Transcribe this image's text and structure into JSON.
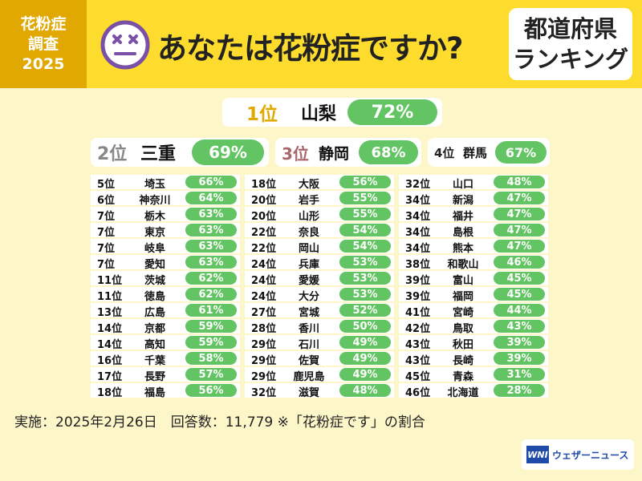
{
  "header": {
    "survey_tag": [
      "花粉症",
      "調査",
      "2025"
    ],
    "title": "あなたは花粉症ですか?",
    "ranking_label": [
      "都道府県",
      "ランキング"
    ]
  },
  "top": [
    {
      "rank": "1位",
      "pref": "山梨",
      "pct": "72%"
    },
    {
      "rank": "2位",
      "pref": "三重",
      "pct": "69%"
    },
    {
      "rank": "3位",
      "pref": "静岡",
      "pct": "68%"
    },
    {
      "rank": "4位",
      "pref": "群馬",
      "pct": "67%"
    }
  ],
  "columns": [
    [
      {
        "rank": "5位",
        "pref": "埼玉",
        "pct": "66%"
      },
      {
        "rank": "6位",
        "pref": "神奈川",
        "pct": "64%"
      },
      {
        "rank": "7位",
        "pref": "栃木",
        "pct": "63%"
      },
      {
        "rank": "7位",
        "pref": "東京",
        "pct": "63%"
      },
      {
        "rank": "7位",
        "pref": "岐阜",
        "pct": "63%"
      },
      {
        "rank": "7位",
        "pref": "愛知",
        "pct": "63%"
      },
      {
        "rank": "11位",
        "pref": "茨城",
        "pct": "62%"
      },
      {
        "rank": "11位",
        "pref": "徳島",
        "pct": "62%"
      },
      {
        "rank": "13位",
        "pref": "広島",
        "pct": "61%"
      },
      {
        "rank": "14位",
        "pref": "京都",
        "pct": "59%"
      },
      {
        "rank": "14位",
        "pref": "高知",
        "pct": "59%"
      },
      {
        "rank": "16位",
        "pref": "千葉",
        "pct": "58%"
      },
      {
        "rank": "17位",
        "pref": "長野",
        "pct": "57%"
      },
      {
        "rank": "18位",
        "pref": "福島",
        "pct": "56%"
      }
    ],
    [
      {
        "rank": "18位",
        "pref": "大阪",
        "pct": "56%"
      },
      {
        "rank": "20位",
        "pref": "岩手",
        "pct": "55%"
      },
      {
        "rank": "20位",
        "pref": "山形",
        "pct": "55%"
      },
      {
        "rank": "22位",
        "pref": "奈良",
        "pct": "54%"
      },
      {
        "rank": "22位",
        "pref": "岡山",
        "pct": "54%"
      },
      {
        "rank": "24位",
        "pref": "兵庫",
        "pct": "53%"
      },
      {
        "rank": "24位",
        "pref": "愛媛",
        "pct": "53%"
      },
      {
        "rank": "24位",
        "pref": "大分",
        "pct": "53%"
      },
      {
        "rank": "27位",
        "pref": "宮城",
        "pct": "52%"
      },
      {
        "rank": "28位",
        "pref": "香川",
        "pct": "50%"
      },
      {
        "rank": "29位",
        "pref": "石川",
        "pct": "49%"
      },
      {
        "rank": "29位",
        "pref": "佐賀",
        "pct": "49%"
      },
      {
        "rank": "29位",
        "pref": "鹿児島",
        "pct": "49%"
      },
      {
        "rank": "32位",
        "pref": "滋賀",
        "pct": "48%"
      }
    ],
    [
      {
        "rank": "32位",
        "pref": "山口",
        "pct": "48%"
      },
      {
        "rank": "34位",
        "pref": "新潟",
        "pct": "47%"
      },
      {
        "rank": "34位",
        "pref": "福井",
        "pct": "47%"
      },
      {
        "rank": "34位",
        "pref": "島根",
        "pct": "47%"
      },
      {
        "rank": "34位",
        "pref": "熊本",
        "pct": "47%"
      },
      {
        "rank": "38位",
        "pref": "和歌山",
        "pct": "46%"
      },
      {
        "rank": "39位",
        "pref": "富山",
        "pct": "45%"
      },
      {
        "rank": "39位",
        "pref": "福岡",
        "pct": "45%"
      },
      {
        "rank": "41位",
        "pref": "宮崎",
        "pct": "44%"
      },
      {
        "rank": "42位",
        "pref": "鳥取",
        "pct": "43%"
      },
      {
        "rank": "43位",
        "pref": "秋田",
        "pct": "39%"
      },
      {
        "rank": "43位",
        "pref": "長崎",
        "pct": "39%"
      },
      {
        "rank": "45位",
        "pref": "青森",
        "pct": "31%"
      },
      {
        "rank": "46位",
        "pref": "北海道",
        "pct": "28%"
      }
    ]
  ],
  "footer": {
    "note": "実施：2025年2月26日　回答数：11,779 ※「花粉症です」の割合",
    "logo_mark": "WNI",
    "logo_text": "ウェザーニュース"
  },
  "colors": {
    "accent_green": "#62c462",
    "header_yellow": "#fddc2e",
    "tag_gold": "#e0a800",
    "background": "#fdf6c8"
  }
}
